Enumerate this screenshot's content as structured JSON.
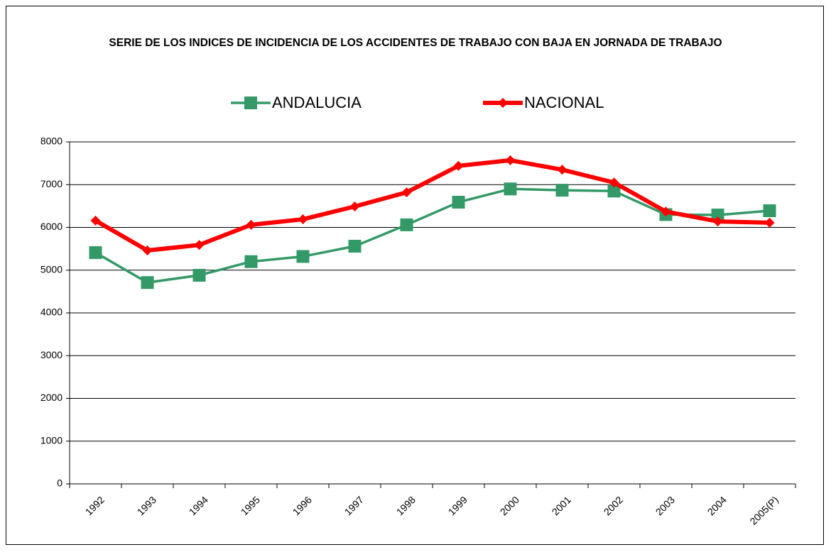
{
  "chart_data": {
    "type": "line",
    "title": "SERIE DE LOS INDICES DE INCIDENCIA DE LOS ACCIDENTES DE TRABAJO CON BAJA EN JORNADA DE TRABAJO",
    "categories": [
      "1992",
      "1993",
      "1994",
      "1995",
      "1996",
      "1997",
      "1998",
      "1999",
      "2000",
      "2001",
      "2002",
      "2003",
      "2004",
      "2005(P)"
    ],
    "series": [
      {
        "name": "ANDALUCIA",
        "color": "#339966",
        "marker": "square",
        "values": [
          5410,
          4710,
          4880,
          5200,
          5320,
          5560,
          6060,
          6590,
          6900,
          6870,
          6850,
          6300,
          6290,
          6390
        ]
      },
      {
        "name": "NACIONAL",
        "color": "#ff0000",
        "marker": "diamond",
        "values": [
          6160,
          5460,
          5590,
          6060,
          6190,
          6490,
          6820,
          7440,
          7570,
          7350,
          7050,
          6370,
          6140,
          6110
        ]
      }
    ],
    "ylim": [
      0,
      8000
    ],
    "yticks": [
      0,
      1000,
      2000,
      3000,
      4000,
      5000,
      6000,
      7000,
      8000
    ],
    "grid": true,
    "legend": "top"
  }
}
